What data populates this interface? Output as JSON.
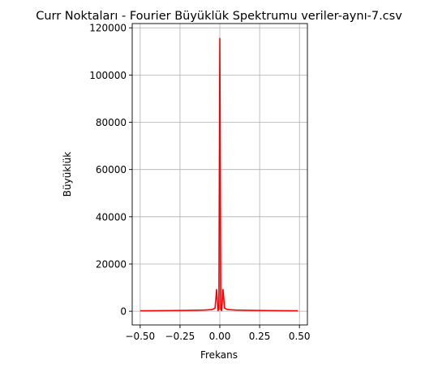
{
  "chart_data": {
    "type": "line",
    "title": "Curr Noktaları - Fourier Büyüklük Spektrumu veriler-aynı-7.csv",
    "xlabel": "Frekans",
    "ylabel": "Büyüklük",
    "xlim": [
      -0.55,
      0.55
    ],
    "ylim": [
      -5800,
      121800
    ],
    "grid": true,
    "xticks": [
      -0.5,
      -0.25,
      0,
      0.25,
      0.5
    ],
    "xtick_labels": [
      "−0.50",
      "−0.25",
      "0.00",
      "0.25",
      "0.50"
    ],
    "yticks": [
      0,
      20000,
      40000,
      60000,
      80000,
      100000,
      120000
    ],
    "ytick_labels": [
      "0",
      "20000",
      "40000",
      "60000",
      "80000",
      "100000",
      "120000"
    ],
    "series": [
      {
        "color": "#ff0000",
        "x": [
          -0.5,
          -0.4,
          -0.3,
          -0.2,
          -0.1,
          -0.05,
          -0.03,
          -0.02,
          -0.012,
          -0.006,
          0,
          0.006,
          0.012,
          0.02,
          0.03,
          0.05,
          0.1,
          0.2,
          0.3,
          0.4,
          0.49
        ],
        "y": [
          200,
          250,
          300,
          380,
          500,
          700,
          1300,
          9200,
          300,
          900,
          115500,
          900,
          300,
          9200,
          1300,
          700,
          500,
          380,
          300,
          250,
          200
        ]
      }
    ]
  }
}
